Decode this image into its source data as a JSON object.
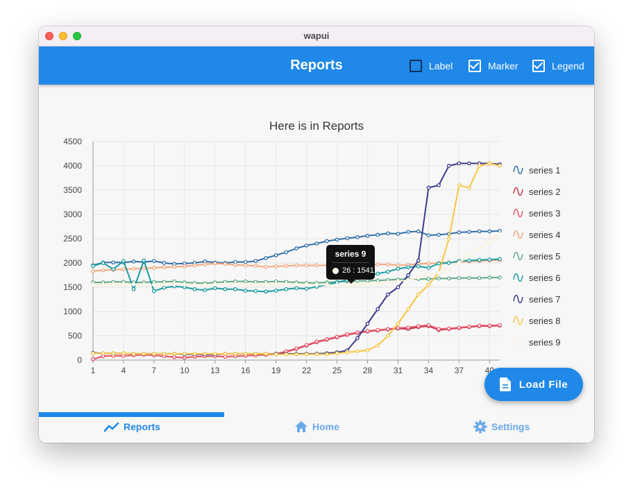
{
  "window": {
    "title": "wapui"
  },
  "appbar": {
    "title": "Reports",
    "toggles": [
      {
        "label": "Label",
        "checked": false
      },
      {
        "label": "Marker",
        "checked": true
      },
      {
        "label": "Legend",
        "checked": true
      }
    ]
  },
  "fab": {
    "label": "Load File",
    "icon": "file-icon"
  },
  "tabs": [
    {
      "label": "Reports",
      "icon": "chart-line-icon",
      "active": true
    },
    {
      "label": "Home",
      "icon": "home-icon",
      "active": false
    },
    {
      "label": "Settings",
      "icon": "gear-icon",
      "active": false
    }
  ],
  "colors": {
    "accent": "#1f88e8"
  },
  "chart_data": {
    "type": "line",
    "title": "Here is in Reports",
    "xlabel": "",
    "ylabel": "",
    "ylim": [
      0,
      4500
    ],
    "yticks": [
      0,
      500,
      1000,
      1500,
      2000,
      2500,
      3000,
      3500,
      4000,
      4500
    ],
    "xticks": [
      "1",
      "4",
      "7",
      "10",
      "13",
      "16",
      "19",
      "22",
      "25",
      "28",
      "31",
      "34",
      "37",
      "40"
    ],
    "grid": true,
    "legend": "right",
    "tooltip": {
      "series": "series 9",
      "text": "26 : 1541"
    },
    "x": [
      1,
      2,
      3,
      4,
      5,
      6,
      7,
      8,
      9,
      10,
      11,
      12,
      13,
      14,
      15,
      16,
      17,
      18,
      19,
      20,
      21,
      22,
      23,
      24,
      25,
      26,
      27,
      28,
      29,
      30,
      31,
      32,
      33,
      34,
      35,
      36,
      37,
      38,
      39,
      40,
      41
    ],
    "series": [
      {
        "name": "series 1",
        "color": "#2f6ea8",
        "values": [
          1950,
          2010,
          2010,
          2010,
          2030,
          2020,
          2040,
          2000,
          1980,
          1990,
          2000,
          2030,
          2010,
          2000,
          2020,
          2020,
          2040,
          2100,
          2160,
          2220,
          2300,
          2360,
          2400,
          2450,
          2480,
          2510,
          2530,
          2560,
          2580,
          2610,
          2600,
          2640,
          2650,
          2570,
          2580,
          2600,
          2630,
          2640,
          2650,
          2650,
          2660
        ]
      },
      {
        "name": "series 2",
        "color": "#c4314b",
        "values": [
          20,
          80,
          90,
          90,
          100,
          110,
          100,
          80,
          60,
          50,
          70,
          80,
          80,
          70,
          80,
          90,
          100,
          110,
          120,
          170,
          230,
          300,
          370,
          420,
          470,
          520,
          560,
          590,
          610,
          630,
          650,
          640,
          680,
          700,
          620,
          640,
          660,
          680,
          700,
          700,
          710
        ]
      },
      {
        "name": "series 3",
        "color": "#e8566b",
        "values": [
          20,
          80,
          90,
          90,
          100,
          110,
          100,
          80,
          60,
          50,
          70,
          80,
          80,
          70,
          80,
          90,
          100,
          110,
          130,
          180,
          240,
          310,
          380,
          430,
          480,
          530,
          570,
          600,
          620,
          640,
          660,
          670,
          700,
          720,
          640,
          650,
          670,
          690,
          710,
          710,
          720
        ]
      },
      {
        "name": "series 4",
        "color": "#f2a67c",
        "values": [
          1830,
          1850,
          1860,
          1870,
          1880,
          1890,
          1900,
          1910,
          1920,
          1930,
          1950,
          1970,
          1990,
          1980,
          1960,
          1950,
          1940,
          1920,
          1930,
          1940,
          1950,
          1950,
          1950,
          1950,
          1950,
          1950,
          1960,
          1960,
          1970,
          1970,
          1950,
          1960,
          1980,
          1990,
          2000,
          2010,
          2020,
          2030,
          2040,
          2050,
          2060
        ]
      },
      {
        "name": "series 5",
        "color": "#5fa886",
        "values": [
          1600,
          1600,
          1610,
          1610,
          1600,
          1600,
          1610,
          1610,
          1620,
          1600,
          1590,
          1580,
          1600,
          1610,
          1620,
          1620,
          1610,
          1610,
          1620,
          1610,
          1600,
          1590,
          1590,
          1600,
          1610,
          1620,
          1630,
          1630,
          1640,
          1650,
          1660,
          1670,
          1670,
          1670,
          1680,
          1680,
          1690,
          1690,
          1690,
          1700,
          1700
        ]
      },
      {
        "name": "series 6",
        "color": "#1a9aa0",
        "values": [
          1940,
          2000,
          1870,
          2040,
          1460,
          2050,
          1420,
          1490,
          1520,
          1500,
          1460,
          1440,
          1480,
          1460,
          1460,
          1430,
          1420,
          1410,
          1430,
          1460,
          1480,
          1470,
          1510,
          1550,
          1600,
          1650,
          1700,
          1740,
          1780,
          1820,
          1880,
          1910,
          1930,
          1900,
          1990,
          2000,
          2040,
          2050,
          2060,
          2070,
          2080
        ]
      },
      {
        "name": "series 7",
        "color": "#3b3a8e",
        "values": [
          150,
          140,
          140,
          140,
          130,
          130,
          130,
          130,
          130,
          120,
          120,
          120,
          120,
          130,
          130,
          130,
          130,
          130,
          130,
          130,
          130,
          130,
          130,
          140,
          160,
          200,
          450,
          750,
          1050,
          1350,
          1500,
          1750,
          2050,
          3550,
          3600,
          4000,
          4050,
          4050,
          4050,
          4050,
          4030
        ]
      },
      {
        "name": "series 8",
        "color": "#f7c542",
        "values": [
          140,
          140,
          140,
          140,
          130,
          130,
          130,
          130,
          130,
          130,
          130,
          130,
          130,
          130,
          130,
          130,
          130,
          130,
          120,
          120,
          120,
          120,
          120,
          120,
          140,
          160,
          180,
          200,
          300,
          500,
          750,
          1050,
          1350,
          1550,
          1800,
          2500,
          3600,
          3550,
          4000,
          4050,
          4000
        ]
      },
      {
        "name": "series 9",
        "color": "#fbf1dc",
        "values": [
          1550,
          1550,
          1560,
          1560,
          1560,
          1550,
          1550,
          1560,
          1560,
          1560,
          1550,
          1550,
          1560,
          1560,
          1560,
          1550,
          1550,
          1560,
          1560,
          1560,
          1560,
          1560,
          1550,
          1550,
          1541,
          1541,
          1550,
          1560,
          1580,
          1600,
          1620,
          1650,
          1700,
          1760,
          1800,
          1900,
          2000,
          2150,
          2300,
          2450,
          2600
        ]
      }
    ]
  }
}
